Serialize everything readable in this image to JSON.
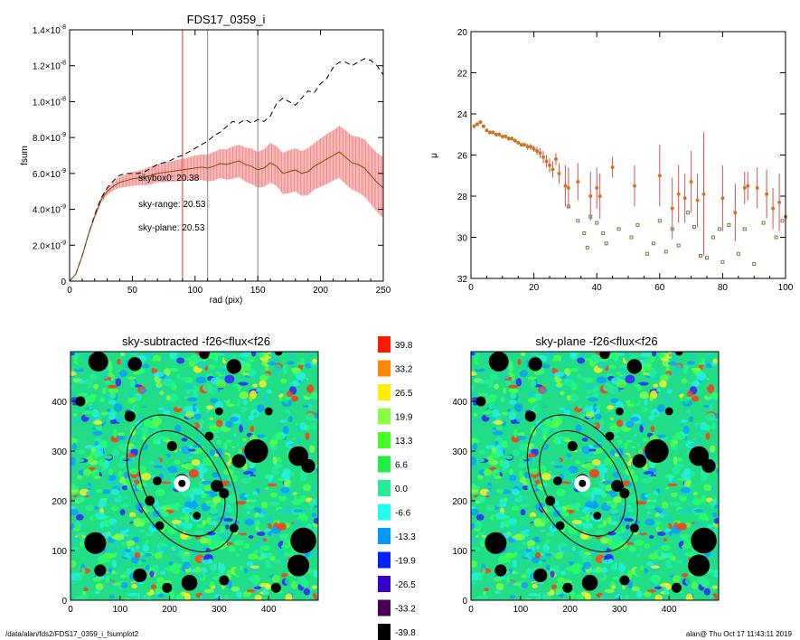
{
  "chart_data": [
    {
      "type": "line",
      "title": "FDS17_0359_i",
      "xlabel": "rad (pix)",
      "ylabel": "fsum",
      "xlim": [
        0,
        250
      ],
      "ylim": [
        0,
        1.4e-08
      ],
      "x_ticks": [
        "0",
        "50",
        "100",
        "150",
        "200",
        "250"
      ],
      "y_ticks": [
        {
          "base": "0",
          "exp": ""
        },
        {
          "base": "2.0×10",
          "exp": "-9"
        },
        {
          "base": "4.0×10",
          "exp": "-9"
        },
        {
          "base": "6.0×10",
          "exp": "-9"
        },
        {
          "base": "8.0×10",
          "exp": "-9"
        },
        {
          "base": "1.0×10",
          "exp": "-8"
        },
        {
          "base": "1.2×10",
          "exp": "-8"
        },
        {
          "base": "1.4×10",
          "exp": "-8"
        }
      ],
      "vertical_lines": [
        {
          "x": 90,
          "color": "#e03030"
        },
        {
          "x": 110,
          "color": "#888888"
        },
        {
          "x": 150,
          "color": "#888888"
        }
      ],
      "series": [
        {
          "style": "dashed",
          "color": "#000000",
          "x": [
            0,
            5,
            10,
            15,
            20,
            25,
            30,
            35,
            40,
            45,
            50,
            55,
            60,
            65,
            70,
            75,
            80,
            85,
            90,
            95,
            100,
            105,
            110,
            115,
            120,
            125,
            130,
            135,
            140,
            145,
            150,
            155,
            160,
            165,
            170,
            175,
            180,
            185,
            190,
            195,
            200,
            205,
            210,
            215,
            220,
            225,
            230,
            235,
            240,
            245,
            250
          ],
          "y": [
            0,
            4e-10,
            1.4e-09,
            2.6e-09,
            3.7e-09,
            4.6e-09,
            5.2e-09,
            5.6e-09,
            5.9e-09,
            6e-09,
            6e-09,
            6e-09,
            6.1e-09,
            6.3e-09,
            6.5e-09,
            6.6e-09,
            6.7e-09,
            6.9e-09,
            7e-09,
            7.2e-09,
            7.4e-09,
            7.6e-09,
            7.8e-09,
            8.1e-09,
            8.3e-09,
            8.6e-09,
            8.9e-09,
            8.8e-09,
            9e-09,
            8.8e-09,
            9e-09,
            8.9e-09,
            9.2e-09,
            9.9e-09,
            1.02e-08,
            1e-08,
            9.8e-09,
            1.02e-08,
            1.06e-08,
            1.05e-08,
            1.1e-08,
            1.13e-08,
            1.19e-08,
            1.22e-08,
            1.22e-08,
            1.2e-08,
            1.22e-08,
            1.24e-08,
            1.23e-08,
            1.2e-08,
            1.15e-08
          ]
        },
        {
          "style": "solid",
          "color": "#8b4a00",
          "errcolor": "#f08a8a",
          "x": [
            0,
            5,
            10,
            15,
            20,
            25,
            30,
            35,
            40,
            45,
            50,
            55,
            60,
            65,
            70,
            75,
            80,
            85,
            90,
            95,
            100,
            105,
            110,
            115,
            120,
            125,
            130,
            135,
            140,
            145,
            150,
            155,
            160,
            165,
            170,
            175,
            180,
            185,
            190,
            195,
            200,
            205,
            210,
            215,
            220,
            225,
            230,
            235,
            240,
            245,
            250
          ],
          "y": [
            0,
            4e-10,
            1.4e-09,
            2.6e-09,
            3.6e-09,
            4.5e-09,
            5e-09,
            5.3e-09,
            5.5e-09,
            5.6e-09,
            5.7e-09,
            5.75e-09,
            5.8e-09,
            5.9e-09,
            6e-09,
            6.05e-09,
            6.1e-09,
            6.15e-09,
            6.2e-09,
            6.25e-09,
            6.3e-09,
            6.35e-09,
            6.3e-09,
            6.4e-09,
            6.55e-09,
            6.5e-09,
            6.6e-09,
            6.7e-09,
            6.5e-09,
            6.4e-09,
            6.2e-09,
            6.3e-09,
            6.6e-09,
            6.4e-09,
            6e-09,
            6.1e-09,
            6.2e-09,
            6e-09,
            6.1e-09,
            6.4e-09,
            6.6e-09,
            6.8e-09,
            7e-09,
            7.2e-09,
            6.9e-09,
            6.6e-09,
            6.5e-09,
            6.3e-09,
            5.9e-09,
            5.5e-09,
            5.2e-09
          ],
          "err": [
            0,
            2e-11,
            5e-11,
            8e-11,
            1e-10,
            1.5e-10,
            2e-10,
            2.5e-10,
            3e-10,
            3.5e-10,
            4e-10,
            4e-10,
            4.5e-10,
            5e-10,
            5e-10,
            5.5e-10,
            5.5e-10,
            6e-10,
            6e-10,
            6.5e-10,
            7e-10,
            7e-10,
            7.5e-10,
            8e-10,
            8e-10,
            8.5e-10,
            9e-10,
            9e-10,
            9.5e-10,
            1e-09,
            1e-09,
            1.05e-09,
            1.1e-09,
            1.1e-09,
            1.15e-09,
            1.2e-09,
            1.2e-09,
            1.25e-09,
            1.3e-09,
            1.3e-09,
            1.35e-09,
            1.4e-09,
            1.4e-09,
            1.45e-09,
            1.5e-09,
            1.5e-09,
            1.55e-09,
            1.6e-09,
            1.6e-09,
            1.65e-09,
            1.7e-09
          ]
        }
      ],
      "annotations": [
        {
          "text": "skybox0: 20.38",
          "color": "#000000"
        },
        {
          "text": "sky-range: 20.53",
          "color": "#e02020"
        },
        {
          "text": "sky-plane: 20.53",
          "color": "#22cc22"
        }
      ]
    },
    {
      "type": "scatter",
      "ylabel": "μ",
      "xlim": [
        0,
        100
      ],
      "ylim": [
        20,
        32
      ],
      "y_inverted": true,
      "x_ticks": [
        "0",
        "20",
        "40",
        "60",
        "80",
        "100"
      ],
      "y_ticks": [
        "20",
        "22",
        "24",
        "26",
        "28",
        "30",
        "32"
      ],
      "series": [
        {
          "marker": "circle",
          "color": "#cc7722",
          "errcolor": "#e05050",
          "x": [
            1,
            2,
            3,
            4,
            5,
            6,
            7,
            8,
            9,
            10,
            11,
            12,
            13,
            14,
            15,
            16,
            17,
            18,
            19,
            20,
            21,
            22,
            23,
            24,
            25,
            26,
            27,
            28,
            30,
            31,
            34,
            38,
            40,
            41,
            45,
            52,
            60,
            64,
            66,
            68,
            70,
            72,
            74,
            80,
            84,
            87,
            88,
            91,
            94,
            96,
            98,
            100
          ],
          "y": [
            24.6,
            24.5,
            24.4,
            24.6,
            24.8,
            24.9,
            24.9,
            25.0,
            25.0,
            25.1,
            25.1,
            25.2,
            25.2,
            25.3,
            25.4,
            25.5,
            25.5,
            25.6,
            25.6,
            25.7,
            25.8,
            25.9,
            26.1,
            26.3,
            26.5,
            26.7,
            26.2,
            26.9,
            27.5,
            27.6,
            27.3,
            28.0,
            27.6,
            28.0,
            26.6,
            27.5,
            27.0,
            28.6,
            27.9,
            28.1,
            27.3,
            28.2,
            27.9,
            28.1,
            28.8,
            27.6,
            27.5,
            27.6,
            27.9,
            28.6,
            28.3,
            29.0
          ],
          "err": [
            0.1,
            0.1,
            0.1,
            0.1,
            0.1,
            0.1,
            0.1,
            0.1,
            0.1,
            0.1,
            0.1,
            0.1,
            0.1,
            0.1,
            0.1,
            0.1,
            0.1,
            0.15,
            0.15,
            0.15,
            0.2,
            0.25,
            0.3,
            0.3,
            0.35,
            0.4,
            0.3,
            0.5,
            1.0,
            1.0,
            0.9,
            1.2,
            1.0,
            1.1,
            0.5,
            1.0,
            1.5,
            1.5,
            1.4,
            1.2,
            1.5,
            1.3,
            3.0,
            1.6,
            1.4,
            0.8,
            0.7,
            1.0,
            1.2,
            1.0,
            1.4,
            2.0
          ]
        },
        {
          "marker": "square",
          "color": "#7a7a50",
          "x": [
            31,
            34,
            36,
            37,
            38,
            40,
            42,
            43,
            47,
            51,
            53,
            56,
            58,
            60,
            62,
            64,
            66,
            69,
            71,
            73,
            75,
            77,
            79,
            80,
            82,
            85,
            87,
            90,
            93,
            97,
            99
          ],
          "y": [
            28.5,
            29.2,
            29.8,
            30.5,
            29.0,
            29.3,
            29.8,
            30.3,
            29.6,
            30.0,
            29.4,
            30.8,
            30.3,
            29.2,
            30.7,
            29.6,
            30.4,
            28.8,
            29.5,
            30.9,
            31.0,
            30.0,
            29.6,
            31.2,
            29.4,
            30.8,
            29.6,
            31.3,
            29.3,
            30.0,
            29.2
          ]
        }
      ]
    },
    {
      "type": "heatmap",
      "title": "sky-subtracted -f26<flux<f26",
      "xlim": [
        0,
        500
      ],
      "ylim": [
        0,
        500
      ],
      "x_ticks": [
        "0",
        "100",
        "200",
        "300",
        "400"
      ],
      "y_ticks": [
        "0",
        "100",
        "200",
        "300",
        "400"
      ],
      "center": [
        225,
        235
      ],
      "ellipses": [
        {
          "a": 150,
          "b": 95,
          "angle": 30
        },
        {
          "a": 115,
          "b": 75,
          "angle": 30
        }
      ],
      "masked_regions": [
        [
          225,
          240,
          14
        ],
        [
          56,
          480,
          20
        ],
        [
          130,
          475,
          14
        ],
        [
          330,
          470,
          15
        ],
        [
          20,
          400,
          10
        ],
        [
          120,
          370,
          11
        ],
        [
          300,
          380,
          8
        ],
        [
          400,
          380,
          8
        ],
        [
          205,
          310,
          10
        ],
        [
          280,
          330,
          9
        ],
        [
          340,
          280,
          14
        ],
        [
          375,
          300,
          24
        ],
        [
          460,
          290,
          20
        ],
        [
          480,
          270,
          14
        ],
        [
          175,
          240,
          9
        ],
        [
          295,
          230,
          12
        ],
        [
          310,
          215,
          10
        ],
        [
          160,
          200,
          10
        ],
        [
          255,
          170,
          8
        ],
        [
          180,
          150,
          9
        ],
        [
          330,
          145,
          9
        ],
        [
          470,
          120,
          26
        ],
        [
          460,
          70,
          22
        ],
        [
          50,
          115,
          22
        ],
        [
          60,
          60,
          12
        ],
        [
          140,
          50,
          14
        ],
        [
          240,
          35,
          16
        ],
        [
          195,
          25,
          10
        ],
        [
          310,
          40,
          10
        ],
        [
          415,
          25,
          10
        ],
        [
          420,
          500,
          8
        ],
        [
          270,
          495,
          10
        ]
      ],
      "colorbar": {
        "labels": [
          "39.8",
          "33.2",
          "26.5",
          "19.9",
          "13.3",
          "6.6",
          "0.0",
          "-6.6",
          "-13.3",
          "-19.9",
          "-26.5",
          "-33.2",
          "-39.8"
        ],
        "colors": [
          "#ff1a00",
          "#ff8800",
          "#ffee00",
          "#88ff44",
          "#44ff22",
          "#22ee44",
          "#22ee99",
          "#22ffee",
          "#0099ff",
          "#0022ff",
          "#3300cc",
          "#4a0055",
          "#000000"
        ]
      }
    },
    {
      "type": "heatmap",
      "title": "sky-plane -f26<flux<f26",
      "xlim": [
        0,
        500
      ],
      "ylim": [
        0,
        500
      ],
      "x_ticks": [
        "0",
        "100",
        "200",
        "300",
        "400"
      ],
      "y_ticks": [
        "0",
        "100",
        "200",
        "300",
        "400"
      ],
      "center": [
        225,
        235
      ],
      "ellipses": [
        {
          "a": 150,
          "b": 95,
          "angle": 30
        },
        {
          "a": 115,
          "b": 75,
          "angle": 30
        }
      ]
    }
  ],
  "footer": {
    "left": "/data/alan/fds2/FDS17_0359_i_fsumplot2",
    "right": "alan@  Thu Oct 17 11:43:11 2019"
  }
}
